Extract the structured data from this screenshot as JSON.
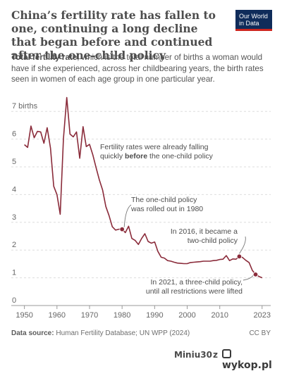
{
  "title": "China’s fertility rate has fallen to one, continuing a long decline that began before and continued after the one-child policy",
  "logo": {
    "line1": "Our World",
    "line2": "in Data"
  },
  "subtitle_bold": "Total fertility rate",
  "subtitle_rest": ", which is the total number of births a woman would have if she experienced, across her childbearing years, the birth rates seen in women of each age group in one particular year.",
  "footer": {
    "source_label": "Data source:",
    "source_text": " Human Fertility Database; UN WPP (2024)",
    "license": "CC BY"
  },
  "watermark": {
    "user": "Miniu30",
    "z": "z",
    "site": "wykop.pl"
  },
  "colors": {
    "line": "#8a2b3a",
    "annotation": "#4d4d4d",
    "grid": "#dddddd",
    "axis": "#666666"
  },
  "chart_data": {
    "type": "line",
    "title": "China’s fertility rate has fallen to one, continuing a long decline that began before and continued after the one-child policy",
    "ylabel": "",
    "xlabel": "",
    "xlim": [
      1949,
      2025
    ],
    "ylim": [
      0,
      7.6
    ],
    "yticks": [
      0,
      1,
      2,
      3,
      4,
      5,
      6,
      7
    ],
    "ytick_labels": [
      "0",
      "1",
      "2",
      "3",
      "4",
      "5",
      "6",
      "7 births"
    ],
    "xticks": [
      1950,
      1960,
      1970,
      1980,
      1990,
      2000,
      2010,
      2023
    ],
    "xtick_labels": [
      "1950",
      "1960",
      "1970",
      "1980",
      "1990",
      "2000",
      "2010",
      "2023"
    ],
    "grid": "horizontal",
    "series": [
      {
        "x": [
          1950,
          1951,
          1952,
          1953,
          1954,
          1955,
          1956,
          1957,
          1958,
          1959,
          1960,
          1961,
          1962,
          1963,
          1964,
          1965,
          1966,
          1967,
          1968,
          1969,
          1970,
          1971,
          1972,
          1973,
          1974,
          1975,
          1976,
          1977,
          1978,
          1979,
          1980,
          1981,
          1982,
          1983,
          1984,
          1985,
          1986,
          1987,
          1988,
          1989,
          1990,
          1991,
          1992,
          1993,
          1994,
          1995,
          1996,
          1997,
          1998,
          1999,
          2000,
          2001,
          2002,
          2003,
          2004,
          2005,
          2006,
          2007,
          2008,
          2009,
          2010,
          2011,
          2012,
          2013,
          2014,
          2015,
          2016,
          2017,
          2018,
          2019,
          2020,
          2021,
          2022,
          2023
        ],
        "values": [
          5.8,
          5.7,
          6.47,
          6.05,
          6.28,
          6.26,
          5.85,
          6.41,
          5.68,
          4.3,
          4.0,
          3.29,
          6.02,
          7.5,
          6.18,
          6.08,
          6.26,
          5.31,
          6.45,
          5.73,
          5.81,
          5.44,
          4.98,
          4.54,
          4.17,
          3.57,
          3.24,
          2.84,
          2.72,
          2.75,
          2.75,
          2.63,
          2.86,
          2.42,
          2.35,
          2.2,
          2.42,
          2.59,
          2.31,
          2.25,
          2.29,
          1.95,
          1.74,
          1.71,
          1.62,
          1.6,
          1.56,
          1.53,
          1.52,
          1.51,
          1.51,
          1.55,
          1.56,
          1.57,
          1.58,
          1.6,
          1.6,
          1.6,
          1.62,
          1.63,
          1.66,
          1.67,
          1.8,
          1.62,
          1.68,
          1.67,
          1.77,
          1.73,
          1.63,
          1.55,
          1.27,
          1.12,
          1.05,
          1.0
        ]
      }
    ],
    "markers": [
      {
        "x": 1980,
        "y": 2.75
      },
      {
        "x": 2016,
        "y": 1.77
      },
      {
        "x": 2021,
        "y": 1.12
      }
    ],
    "annotations": [
      {
        "lines": [
          "Fertility rates were already falling",
          "quickly |before| the one-child policy"
        ]
      },
      {
        "lines": [
          "The one-child policy",
          "was rolled out in 1980"
        ]
      },
      {
        "lines": [
          "In 2016, it became a",
          "two-child policy"
        ]
      },
      {
        "lines": [
          "In 2021, a three-child policy,",
          "until all restrictions were lifted"
        ]
      }
    ]
  }
}
